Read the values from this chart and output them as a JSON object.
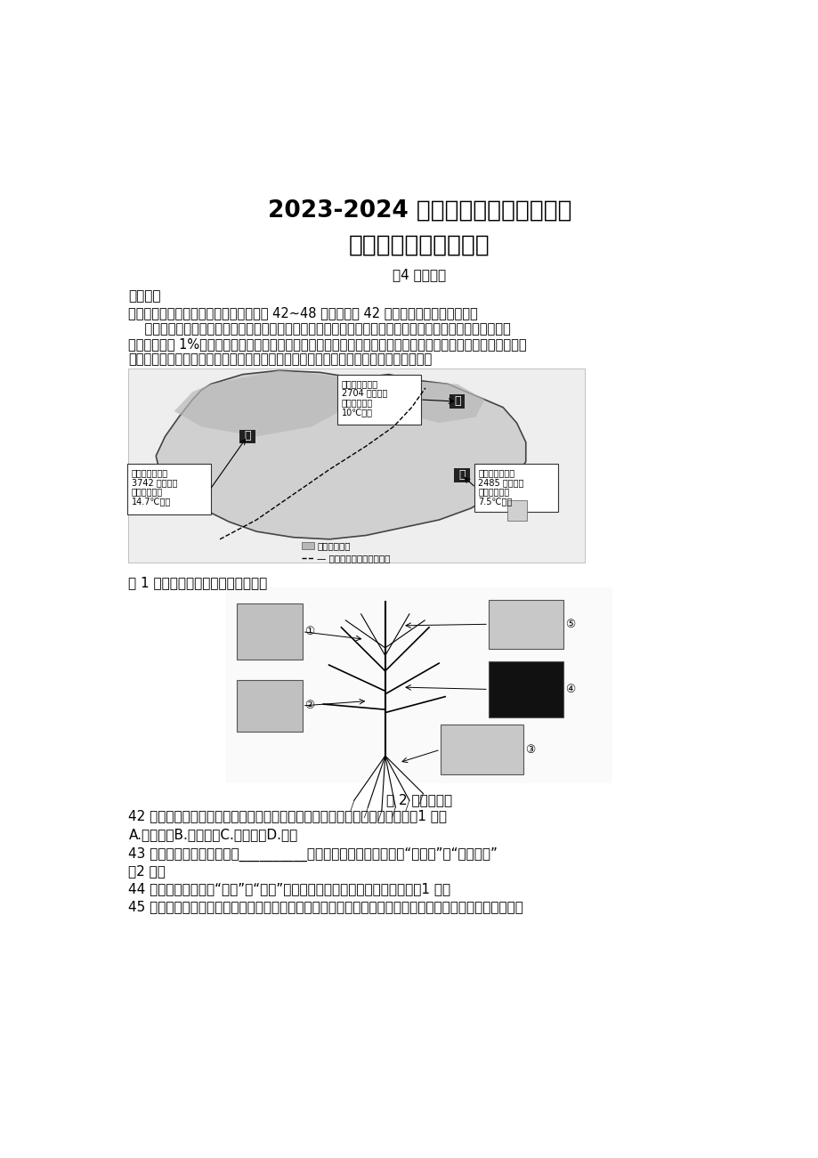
{
  "title1": "2023-2024 学年上学期期末模拟考试",
  "title2": "九年级跨学科案例分析",
  "subtitle": "（4 组试卷）",
  "group_label": "第一组：",
  "intro_line1": "本部分共一个案例。阅读下列资料，回第 42~48 题。其中第 42 选择题只有一个正确选择。",
  "para1": "    海水稻是指在现有自然存活的高耐盐碱性野生稻的基础上，利用遗传工程技术，选育出可供产业化推广的、",
  "para2": "在盐度不低于 1%的海水条件下能正常生长且产量较高的水稻品种，其主要分布在沿海滩涂和部分盐碱地。海水稻",
  "para3": "不需施用肥料、农药，不需除草，不惧海水的短期浸泡，可吸纳海水的养料，长势旺盛。",
  "fig1_caption": "图 1 我国盐碱地分布及季风区分界线",
  "fig2_caption": "图 2 海水稻植株",
  "q42": "42 ．我国盐碱地面积广大，主要分布在（　　）、东北、华北及滨海地区。（1 分）",
  "q42_opts": "A.华南　　B.华东　　C.华中　　D.西北",
  "q43": "43 ．丙位于我国最大的盆地__________盆地西部边缘，地处（选填“季风区”或“非季风区”",
  "q43_b": "（2 分）",
  "q44": "44 ．甲地濨临（选填“黄海”或“东海”）可利用沿海滩涂资源种植海水稻。（1 分）",
  "q45": "45 ．为了研究海水稻新品种的耗盐性，科研人员将不同品种的海水稻幼苗放在不同浓度的盐水溶液中培养。",
  "bg_color": "#ffffff",
  "text_color": "#000000"
}
